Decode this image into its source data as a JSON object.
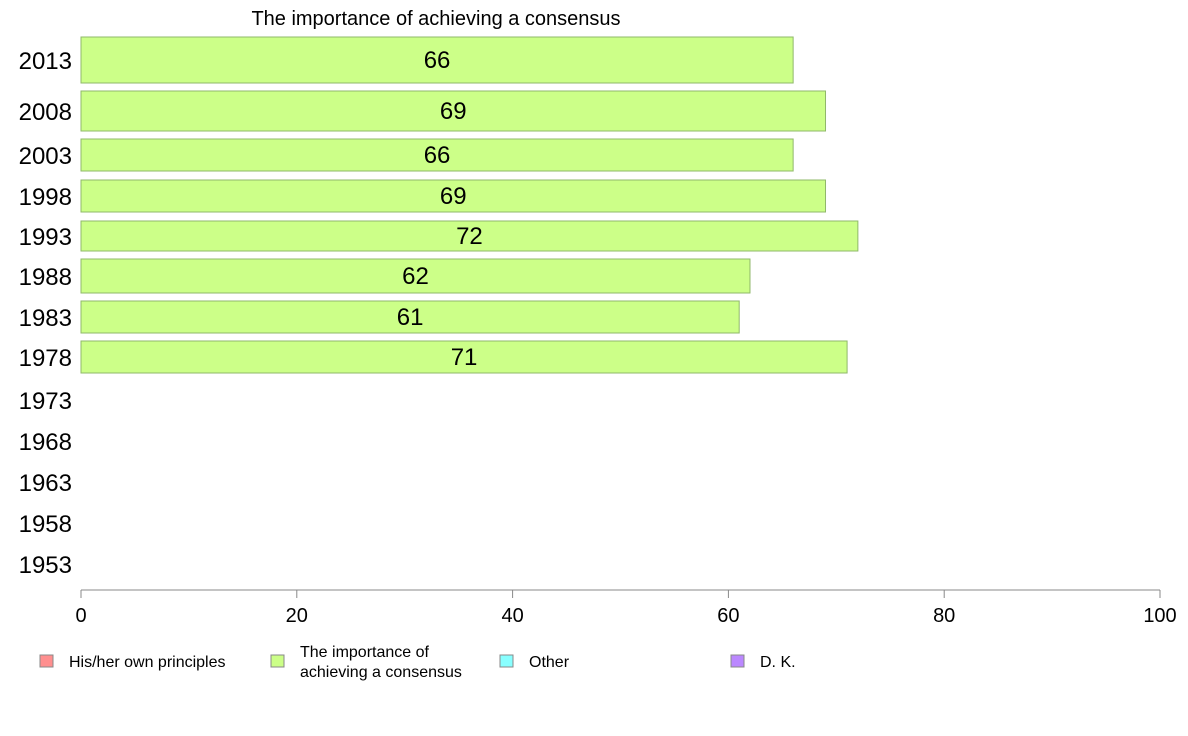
{
  "chart_data": {
    "type": "bar",
    "orientation": "horizontal",
    "title": "The importance of achieving a consensus",
    "categories": [
      "2013",
      "2008",
      "2003",
      "1998",
      "1993",
      "1988",
      "1983",
      "1978",
      "1973",
      "1968",
      "1963",
      "1958",
      "1953"
    ],
    "series": [
      {
        "name": "The importance of achieving a consensus",
        "values": [
          66,
          69,
          66,
          69,
          72,
          62,
          61,
          71,
          null,
          null,
          null,
          null,
          null
        ],
        "labels": [
          "66",
          "69",
          "66",
          "69",
          "72",
          "62",
          "61",
          "71",
          "",
          "",
          "",
          "",
          ""
        ]
      }
    ],
    "xlim": [
      0,
      100
    ],
    "xticks": [
      "0",
      "20",
      "40",
      "60",
      "80",
      "100"
    ],
    "grid": false,
    "legend_position": "bottom",
    "legend": [
      {
        "lines": [
          "His/her own principles"
        ],
        "color": "#ff8f8f"
      },
      {
        "lines": [
          "The importance of",
          "achieving a consensus"
        ],
        "color": "#ccff88"
      },
      {
        "lines": [
          "Other"
        ],
        "color": "#88ffff"
      },
      {
        "lines": [
          "D. K."
        ],
        "color": "#bb88ff"
      }
    ],
    "bar_color": "#ccff88",
    "bar_stroke": "#8fb86a"
  }
}
